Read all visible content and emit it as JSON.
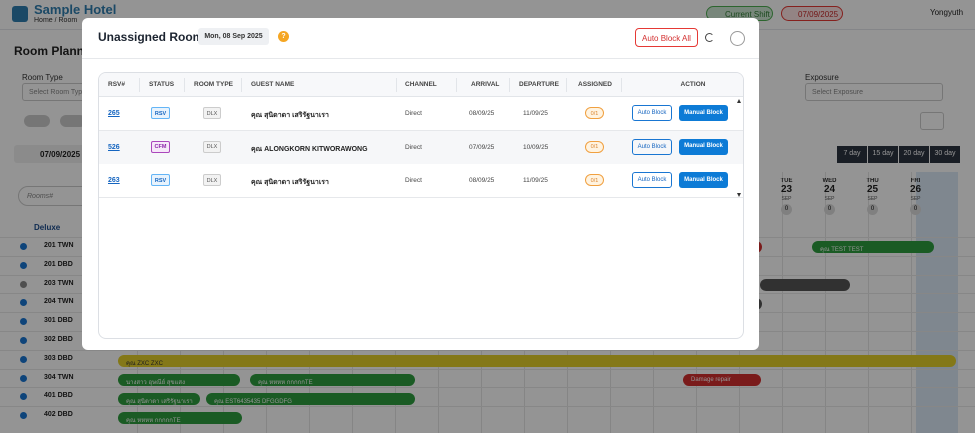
{
  "app": {
    "brand": "Sample Hotel",
    "breadcrumb": "Home / Room",
    "shift": "Current Shift",
    "date": "07/09/2025",
    "user": "Yongyuth"
  },
  "planner": {
    "title": "Room Planner",
    "room_type_label": "Room Type",
    "room_type_placeholder": "Select Room Type",
    "exposure_label": "Exposure",
    "exposure_placeholder": "Select Exposure",
    "date": "07/09/2025",
    "search_placeholder": "Rooms#",
    "views": [
      "7 day",
      "15 day",
      "20 day",
      "30 day"
    ],
    "group": "Deluxe",
    "rooms": [
      "201 TWN",
      "201 DBD",
      "203 TWN",
      "204 TWN",
      "301 DBD",
      "302 DBD",
      "303 DBD",
      "304 TWN",
      "401 DBD",
      "402 DBD"
    ],
    "days": [
      {
        "dow": "TUE",
        "day": "23",
        "month": "SEP",
        "count": "0"
      },
      {
        "dow": "WED",
        "day": "24",
        "month": "SEP",
        "count": "0"
      },
      {
        "dow": "THU",
        "day": "25",
        "month": "SEP",
        "count": "0"
      },
      {
        "dow": "FRI",
        "day": "26",
        "month": "SEP",
        "count": "0"
      }
    ],
    "bookings": [
      "คุณ TEST TEST",
      "คุณ ZXC ZXC",
      "นางสาว อุษณีย์ สุขแสง",
      "คุณ หหหห กกกกกTE",
      "Damage repair",
      "คุณ สุนิดาดา เสริรัฐนาเรา",
      "คุณ EST6435435 DFGGDFG",
      "คุณ หหหห กกกกกTE"
    ]
  },
  "modal": {
    "title": "Unassigned Rooms",
    "date": "Mon, 08 Sep 2025",
    "help": "?",
    "auto_block_all": "Auto Block All",
    "columns": [
      "RSV#",
      "STATUS",
      "ROOM TYPE",
      "GUEST NAME",
      "CHANNEL",
      "ARRIVAL",
      "DEPARTURE",
      "ASSIGNED",
      "ACTION"
    ],
    "rows": [
      [
        "265",
        "RSV",
        "DLX",
        "คุณ สุนิดาดา เสริรัฐนาเรา",
        "Direct",
        "08/09/25",
        "11/09/25",
        "0/1"
      ],
      [
        "526",
        "CFM",
        "DLX",
        "คุณ ALONGKORN KITWORAWONG",
        "Direct",
        "07/09/25",
        "10/09/25",
        "0/1"
      ],
      [
        "263",
        "RSV",
        "DLX",
        "คุณ สุนิดาดา เสริรัฐนาเรา",
        "Direct",
        "08/09/25",
        "11/09/25",
        "0/1"
      ]
    ],
    "auto_block": "Auto Block",
    "manual_block": "Manual Block"
  }
}
